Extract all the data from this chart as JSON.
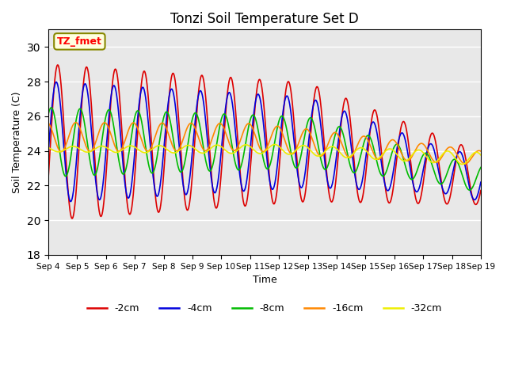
{
  "title": "Tonzi Soil Temperature Set D",
  "xlabel": "Time",
  "ylabel": "Soil Temperature (C)",
  "ylim": [
    18,
    31
  ],
  "xlim": [
    0,
    15
  ],
  "yticks": [
    18,
    20,
    22,
    24,
    26,
    28,
    30
  ],
  "xtick_labels": [
    "Sep 4",
    "Sep 5",
    "Sep 6",
    "Sep 7",
    "Sep 8",
    "Sep 9",
    "Sep 10",
    "Sep 11",
    "Sep 12",
    "Sep 13",
    "Sep 14",
    "Sep 15",
    "Sep 16",
    "Sep 17",
    "Sep 18",
    "Sep 19"
  ],
  "series_colors": {
    "-2cm": "#dd0000",
    "-4cm": "#0000dd",
    "-8cm": "#00bb00",
    "-16cm": "#ff8800",
    "-32cm": "#eeee00"
  },
  "legend_label": "TZ_fmet",
  "background_color": "#e8e8e8"
}
